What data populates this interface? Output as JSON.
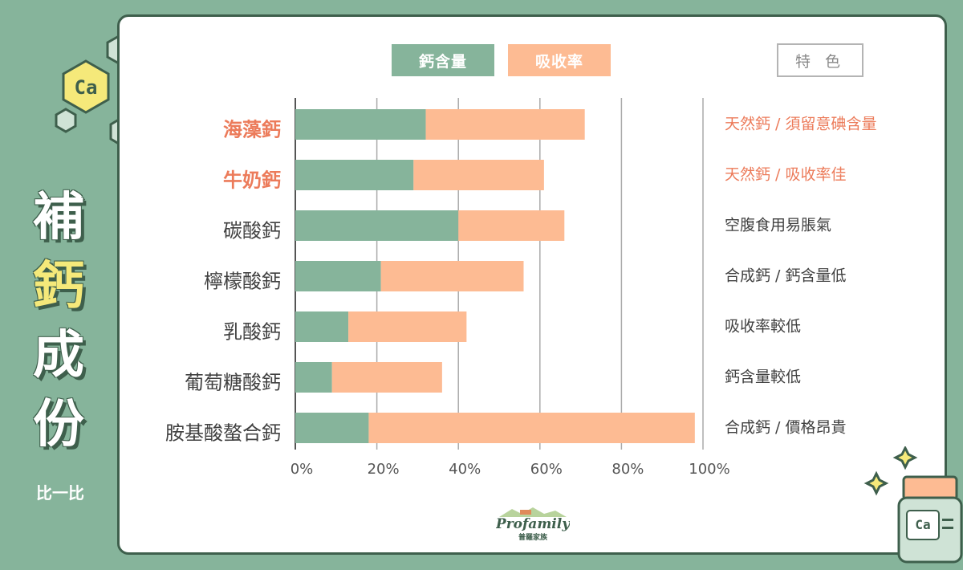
{
  "title_chars": [
    "補",
    "鈣",
    "成",
    "份"
  ],
  "subtitle": "比一比",
  "element_badge": "Ca",
  "legend": {
    "calcium": "鈣含量",
    "absorption": "吸收率"
  },
  "feature_header": "特 色",
  "logo": {
    "script_text": "Profamily",
    "sub_text": "普羅家族"
  },
  "jar_label": "Ca",
  "colors": {
    "background": "#86b49b",
    "calcium": "#86b49b",
    "absorption": "#fdbb93",
    "highlight": "#ec7b5a",
    "dark_green": "#3e5f4c",
    "title_yellow": "#f5e97a"
  },
  "chart_data": {
    "type": "bar",
    "orientation": "horizontal",
    "stacked": true,
    "categories": [
      "海藻鈣",
      "牛奶鈣",
      "碳酸鈣",
      "檸檬酸鈣",
      "乳酸鈣",
      "葡萄糖酸鈣",
      "胺基酸螯合鈣"
    ],
    "highlighted": [
      true,
      true,
      false,
      false,
      false,
      false,
      false
    ],
    "features": [
      "天然鈣 / 須留意碘含量",
      "天然鈣 / 吸收率佳",
      "空腹食用易脹氣",
      "合成鈣 / 鈣含量低",
      "吸收率較低",
      "鈣含量較低",
      "合成鈣 / 價格昂貴"
    ],
    "series": [
      {
        "name": "鈣含量",
        "values": [
          32,
          29,
          40,
          21,
          13,
          9,
          18
        ]
      },
      {
        "name": "吸收率",
        "values": [
          39,
          32,
          26,
          35,
          29,
          27,
          80
        ]
      }
    ],
    "xticks": [
      "0%",
      "20%",
      "40%",
      "60%",
      "80%",
      "100%"
    ],
    "xlim": [
      0,
      100
    ],
    "grid": true
  }
}
